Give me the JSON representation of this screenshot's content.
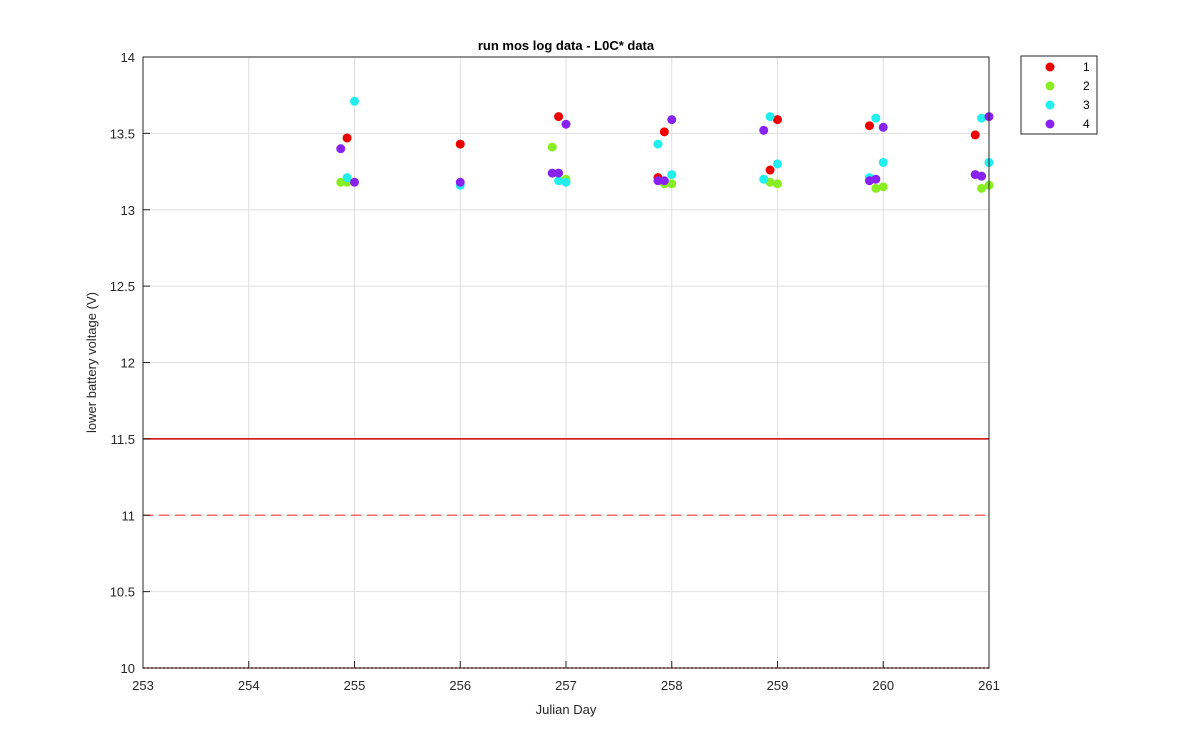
{
  "chart_data": {
    "type": "scatter",
    "title": "run mos log data - L0C* data",
    "xlabel": "Julian Day",
    "ylabel": "lower battery voltage (V)",
    "xlim": [
      253,
      261
    ],
    "ylim": [
      10,
      14
    ],
    "xticks": [
      "253",
      "254",
      "255",
      "256",
      "257",
      "258",
      "259",
      "260",
      "261"
    ],
    "yticks": [
      "10",
      "10.5",
      "11",
      "11.5",
      "12",
      "12.5",
      "13",
      "13.5",
      "14"
    ],
    "grid": true,
    "legend_position": "outside-top-right",
    "reference_lines": [
      {
        "y": 11.5,
        "style": "solid",
        "color": "#cc0000"
      },
      {
        "y": 11.0,
        "style": "dashed",
        "color": "#ff6666"
      },
      {
        "y": 10.0,
        "style": "dotted",
        "color": "#cc0000"
      }
    ],
    "series": [
      {
        "name": "1",
        "color": "#ee0000",
        "points": [
          {
            "x": 254.93,
            "y": 13.47
          },
          {
            "x": 256.0,
            "y": 13.43
          },
          {
            "x": 256.93,
            "y": 13.61
          },
          {
            "x": 257.87,
            "y": 13.21
          },
          {
            "x": 257.93,
            "y": 13.51
          },
          {
            "x": 258.93,
            "y": 13.26
          },
          {
            "x": 259.0,
            "y": 13.59
          },
          {
            "x": 259.87,
            "y": 13.55
          },
          {
            "x": 260.87,
            "y": 13.49
          }
        ]
      },
      {
        "name": "2",
        "color": "#88ee22",
        "points": [
          {
            "x": 254.87,
            "y": 13.18
          },
          {
            "x": 254.93,
            "y": 13.18
          },
          {
            "x": 256.87,
            "y": 13.41
          },
          {
            "x": 257.0,
            "y": 13.2
          },
          {
            "x": 257.93,
            "y": 13.17
          },
          {
            "x": 258.0,
            "y": 13.17
          },
          {
            "x": 258.93,
            "y": 13.18
          },
          {
            "x": 259.0,
            "y": 13.17
          },
          {
            "x": 259.93,
            "y": 13.14
          },
          {
            "x": 260.0,
            "y": 13.15
          },
          {
            "x": 260.93,
            "y": 13.14
          },
          {
            "x": 261.0,
            "y": 13.16
          }
        ]
      },
      {
        "name": "3",
        "color": "#22eeee",
        "points": [
          {
            "x": 254.93,
            "y": 13.21
          },
          {
            "x": 255.0,
            "y": 13.71
          },
          {
            "x": 256.0,
            "y": 13.16
          },
          {
            "x": 256.93,
            "y": 13.19
          },
          {
            "x": 257.0,
            "y": 13.18
          },
          {
            "x": 257.87,
            "y": 13.43
          },
          {
            "x": 258.0,
            "y": 13.23
          },
          {
            "x": 258.87,
            "y": 13.2
          },
          {
            "x": 258.93,
            "y": 13.61
          },
          {
            "x": 259.0,
            "y": 13.3
          },
          {
            "x": 259.87,
            "y": 13.21
          },
          {
            "x": 259.93,
            "y": 13.6
          },
          {
            "x": 260.0,
            "y": 13.31
          },
          {
            "x": 260.93,
            "y": 13.6
          },
          {
            "x": 261.0,
            "y": 13.31
          }
        ]
      },
      {
        "name": "4",
        "color": "#8822ee",
        "points": [
          {
            "x": 254.87,
            "y": 13.4
          },
          {
            "x": 255.0,
            "y": 13.18
          },
          {
            "x": 256.0,
            "y": 13.18
          },
          {
            "x": 256.87,
            "y": 13.24
          },
          {
            "x": 256.93,
            "y": 13.24
          },
          {
            "x": 257.0,
            "y": 13.56
          },
          {
            "x": 257.87,
            "y": 13.19
          },
          {
            "x": 257.93,
            "y": 13.19
          },
          {
            "x": 258.0,
            "y": 13.59
          },
          {
            "x": 258.87,
            "y": 13.52
          },
          {
            "x": 259.87,
            "y": 13.19
          },
          {
            "x": 259.93,
            "y": 13.2
          },
          {
            "x": 260.0,
            "y": 13.54
          },
          {
            "x": 260.87,
            "y": 13.23
          },
          {
            "x": 260.93,
            "y": 13.22
          },
          {
            "x": 261.0,
            "y": 13.61
          }
        ]
      }
    ]
  }
}
